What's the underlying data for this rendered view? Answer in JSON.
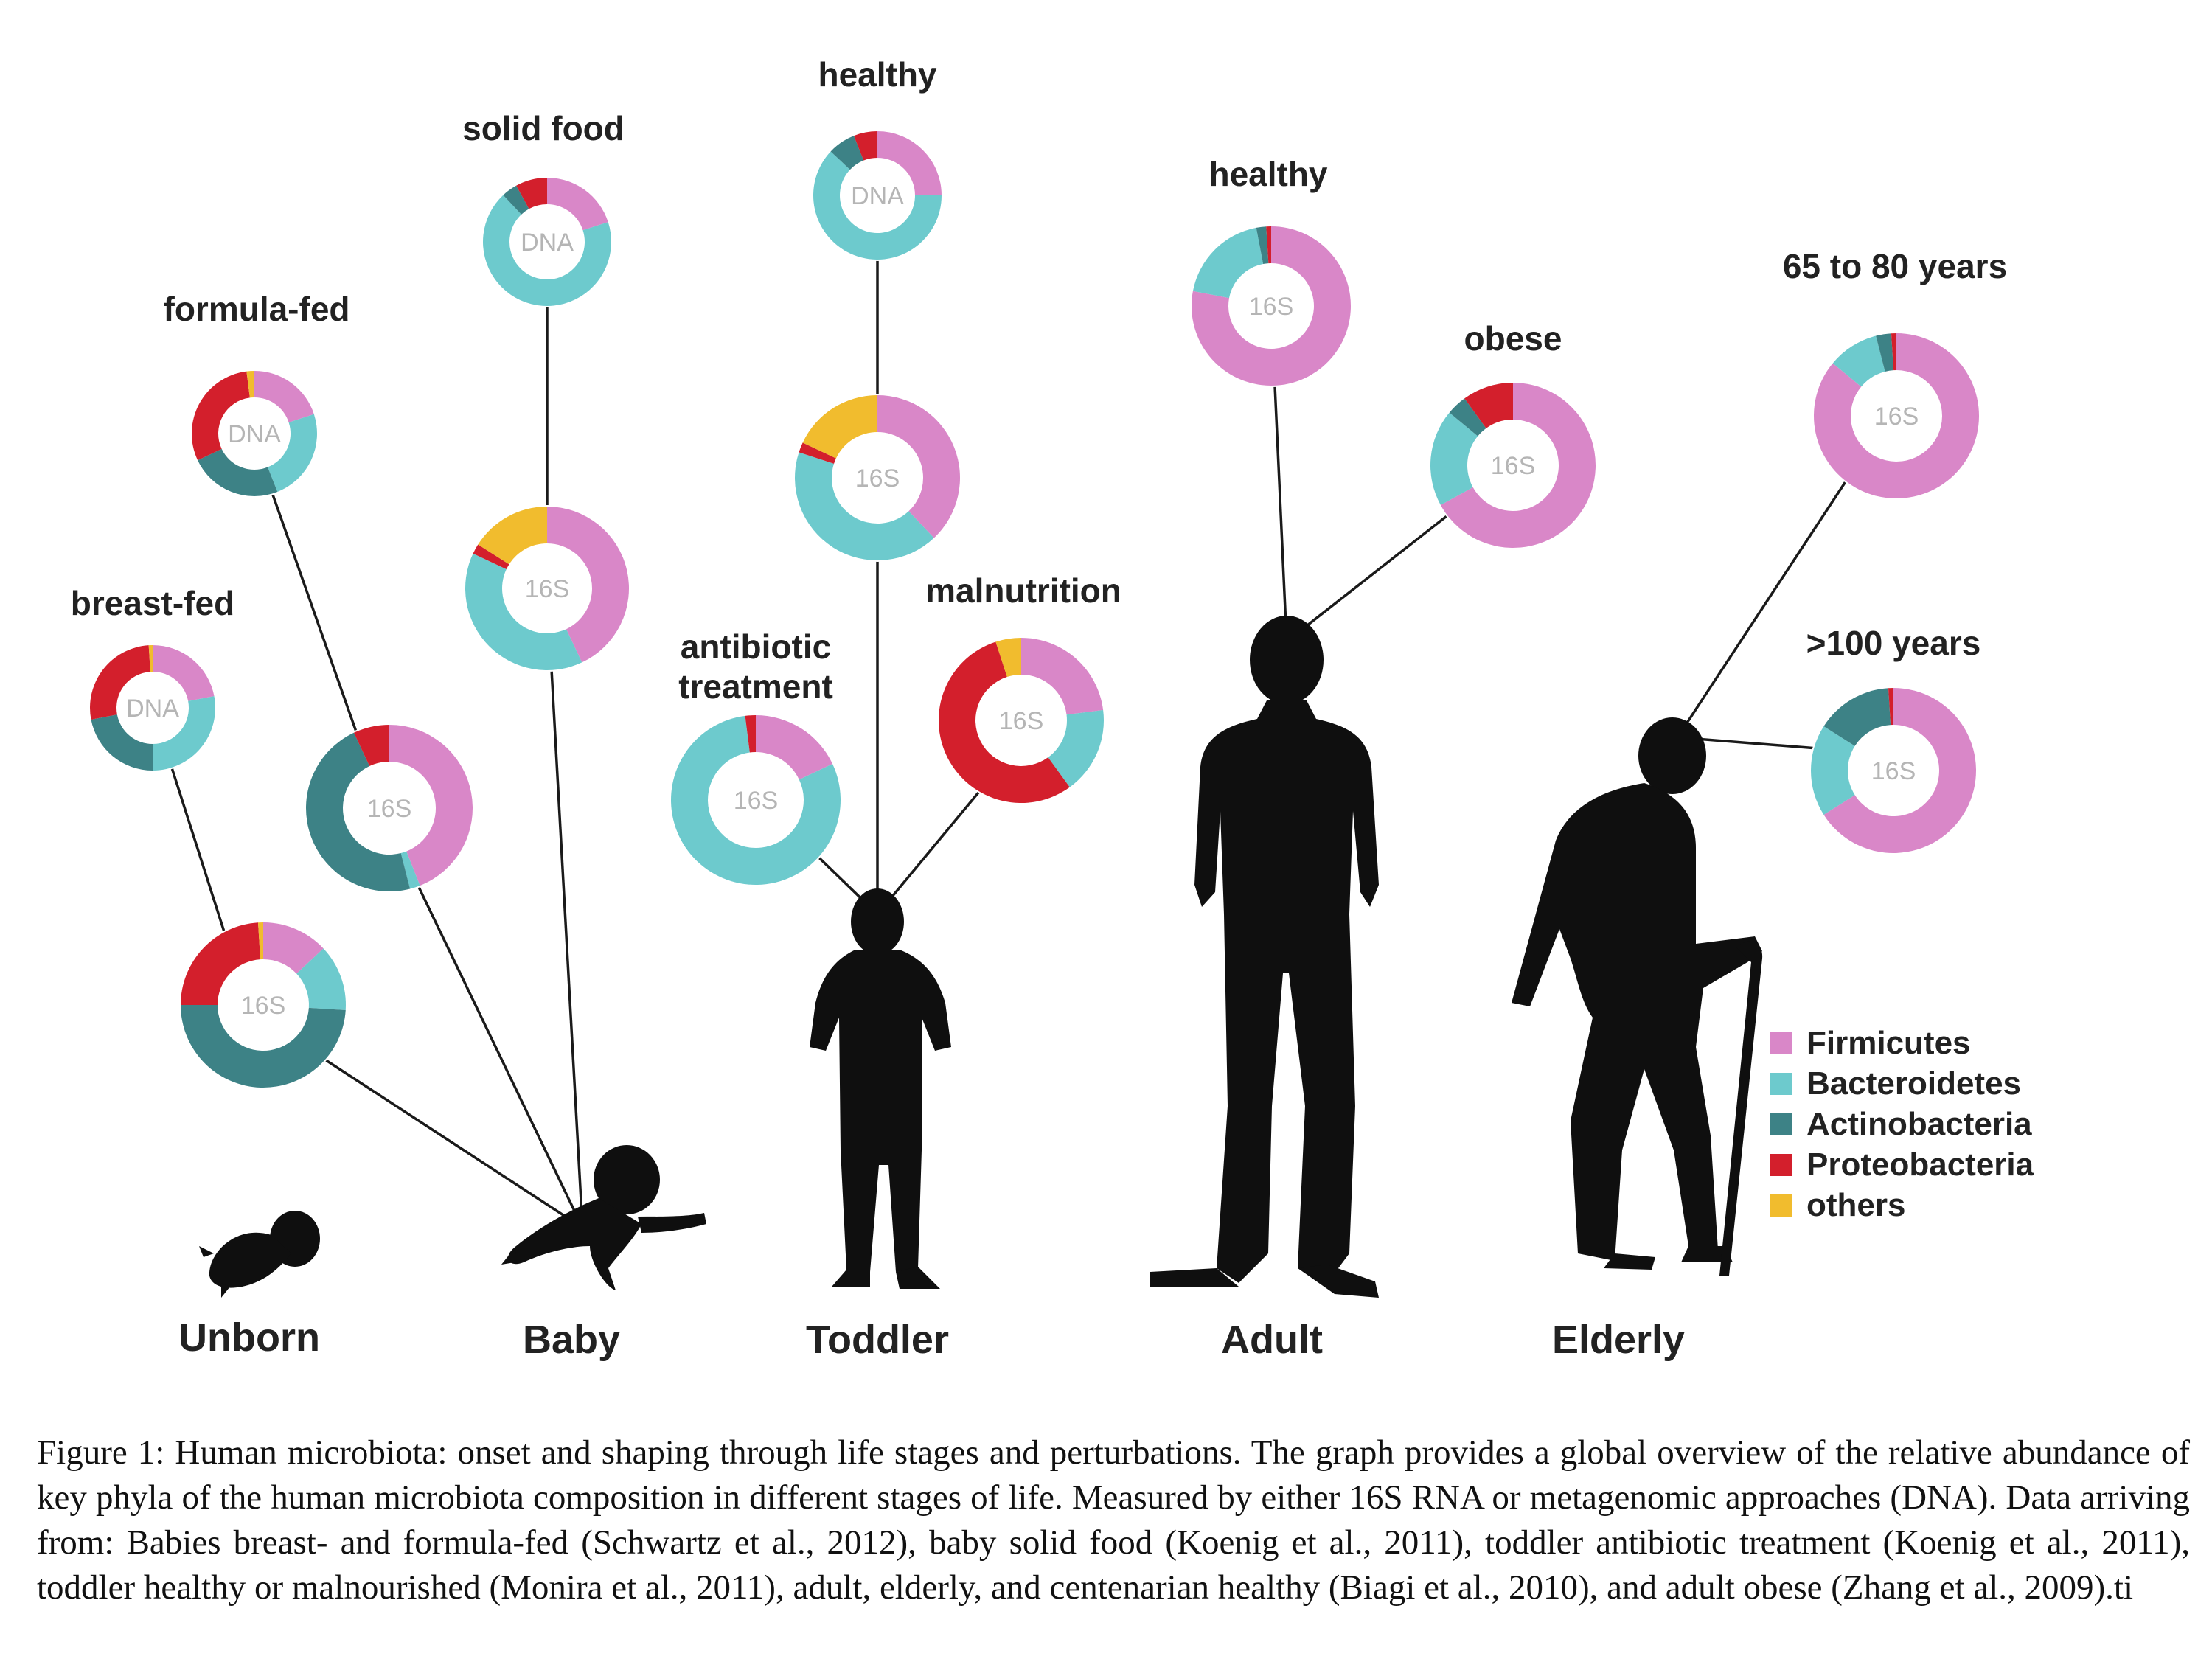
{
  "colors": {
    "firmicutes": "#d987c8",
    "bacteroidetes": "#6dcacd",
    "actinobacteria": "#3d8286",
    "proteobacteria": "#d31f2c",
    "others": "#f1bc2e"
  },
  "legend": [
    {
      "key": "firmicutes",
      "label": "Firmicutes"
    },
    {
      "key": "bacteroidetes",
      "label": "Bacteroidetes"
    },
    {
      "key": "actinobacteria",
      "label": "Actinobacteria"
    },
    {
      "key": "proteobacteria",
      "label": "Proteobacteria"
    },
    {
      "key": "others",
      "label": "others"
    }
  ],
  "stages": {
    "unborn": "Unborn",
    "baby": "Baby",
    "toddler": "Toddler",
    "adult": "Adult",
    "elderly": "Elderly"
  },
  "donuts": {
    "breast_fed_dna": {
      "label": "breast-fed",
      "center": "DNA",
      "segments": [
        0.22,
        0.28,
        0.22,
        0.27,
        0.01
      ]
    },
    "breast_fed_16s": {
      "center": "16S",
      "segments": [
        0.13,
        0.13,
        0.49,
        0.24,
        0.01
      ]
    },
    "formula_fed_dna": {
      "label": "formula-fed",
      "center": "DNA",
      "segments": [
        0.2,
        0.24,
        0.24,
        0.3,
        0.02
      ]
    },
    "formula_fed_16s": {
      "center": "16S",
      "segments": [
        0.44,
        0.02,
        0.47,
        0.07,
        0.0
      ]
    },
    "solid_food_dna": {
      "label": "solid food",
      "center": "DNA",
      "segments": [
        0.2,
        0.68,
        0.04,
        0.08,
        0.0
      ]
    },
    "solid_food_16s": {
      "center": "16S",
      "segments": [
        0.43,
        0.39,
        0.0,
        0.02,
        0.16
      ]
    },
    "toddler_healthy_dna": {
      "label": "healthy",
      "center": "DNA",
      "segments": [
        0.25,
        0.62,
        0.07,
        0.06,
        0.0
      ]
    },
    "toddler_healthy_16s": {
      "center": "16S",
      "segments": [
        0.38,
        0.42,
        0.0,
        0.02,
        0.18
      ]
    },
    "antibiotic_16s": {
      "label": "antibiotic\ntreatment",
      "center": "16S",
      "segments": [
        0.18,
        0.8,
        0.0,
        0.02,
        0.0
      ]
    },
    "malnutrition_16s": {
      "label": "malnutrition",
      "center": "16S",
      "segments": [
        0.23,
        0.17,
        0.0,
        0.55,
        0.05
      ]
    },
    "adult_healthy_16s": {
      "label": "healthy",
      "center": "16S",
      "segments": [
        0.78,
        0.19,
        0.02,
        0.01,
        0.0
      ]
    },
    "adult_obese_16s": {
      "label": "obese",
      "center": "16S",
      "segments": [
        0.67,
        0.19,
        0.04,
        0.1,
        0.0
      ]
    },
    "elderly_65_80_16s": {
      "label": "65 to 80 years",
      "center": "16S",
      "segments": [
        0.86,
        0.1,
        0.03,
        0.01,
        0.0
      ]
    },
    "elderly_100_16s": {
      "label": ">100 years",
      "center": "16S",
      "segments": [
        0.66,
        0.18,
        0.15,
        0.01,
        0.0
      ]
    }
  },
  "caption": "Figure 1: Human microbiota: onset and shaping through life stages and perturbations. The graph provides a global overview of the relative abundance of key phyla of the human microbiota composition in different stages of life. Measured by either 16S RNA or metagenomic approaches (DNA). Data arriving from: Babies breast- and formula-fed (Schwartz et al., 2012), baby solid food (Koenig et al., 2011), toddler antibiotic treatment (Koenig et al., 2011), toddler healthy or malnourished (Monira et al., 2011), adult, elderly, and centenarian healthy (Biagi et al., 2010), and adult obese (Zhang et al., 2009).ti"
}
